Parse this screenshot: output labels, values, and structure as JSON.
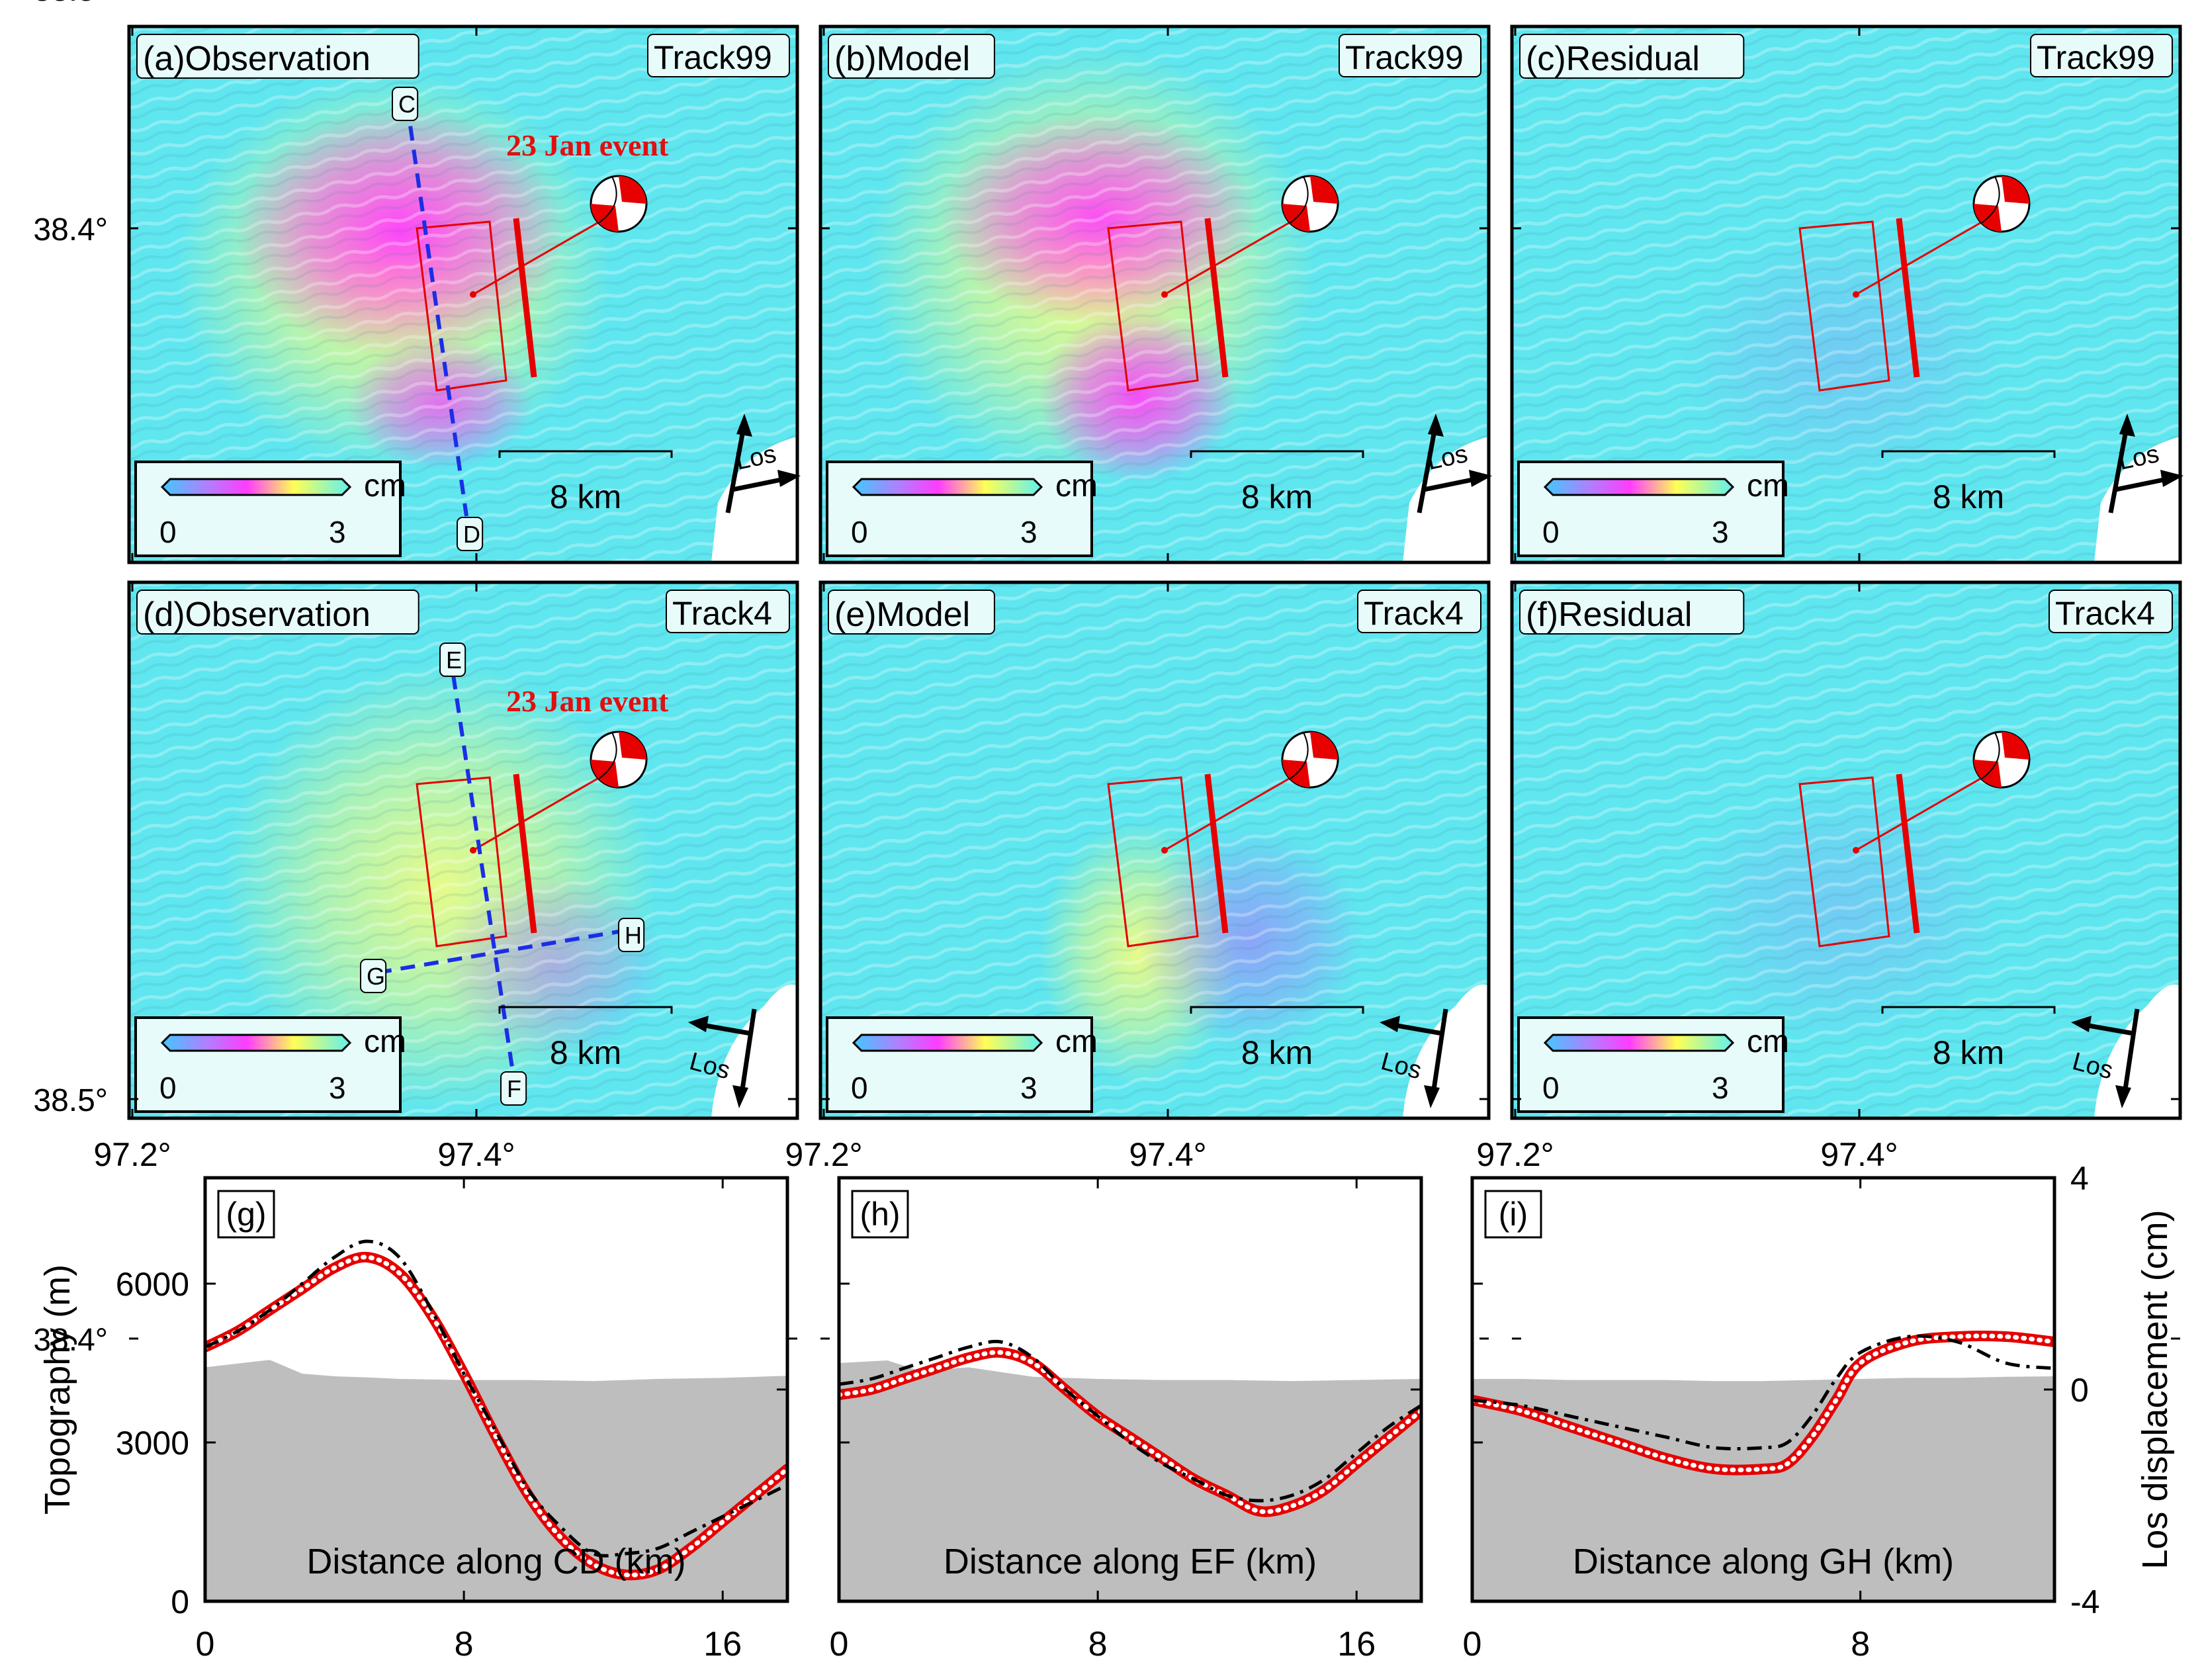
{
  "colors": {
    "insar_background": "#5fe6ef",
    "positive_lobe": "#ff3cff",
    "yellow_lobe": "#ffff78",
    "fault": "#e60000",
    "profile_line": "#1a2ee6",
    "terrain": "#bebebe",
    "observation_profile": "#000000",
    "model_profile": "#e60000"
  },
  "map_axes": {
    "lat_ticks": [
      "38.5°",
      "38.4°"
    ],
    "lat_values": [
      38.5,
      38.4
    ],
    "lon_ticks": [
      "97.2°",
      "97.4°"
    ],
    "lon_values": [
      97.2,
      97.4
    ]
  },
  "colorbar": {
    "unit": "cm",
    "min": "0",
    "max": "3"
  },
  "scale_bar": "8 km",
  "los_label": "Los",
  "event_label": "23 Jan event",
  "panels": [
    {
      "label": "(a)Observation",
      "track": "Track99",
      "pattern": "obs99",
      "event": true,
      "points": [
        "C",
        "D"
      ]
    },
    {
      "label": "(b)Model",
      "track": "Track99",
      "pattern": "mod99",
      "event": false,
      "points": []
    },
    {
      "label": "(c)Residual",
      "track": "Track99",
      "pattern": "res",
      "event": false,
      "points": []
    },
    {
      "label": "(d)Observation",
      "track": "Track4",
      "pattern": "obs4",
      "event": true,
      "points": [
        "E",
        "F",
        "G",
        "H"
      ]
    },
    {
      "label": "(e)Model",
      "track": "Track4",
      "pattern": "mod4",
      "event": false,
      "points": []
    },
    {
      "label": "(f)Residual",
      "track": "Track4",
      "pattern": "res",
      "event": false,
      "points": []
    }
  ],
  "profiles_axes": {
    "ylabel_left": "Topography (m)",
    "ylabel_right": "Los displacement (cm)",
    "left_ticks": [
      "0",
      "3000",
      "6000"
    ],
    "right_ticks": [
      "-4",
      "0",
      "4"
    ],
    "topo_range_m": [
      0,
      8000
    ],
    "los_range_cm": [
      -4,
      4
    ]
  },
  "chart_data": [
    {
      "type": "line",
      "label": "(g)",
      "xlabel": "Distance along CD (km)",
      "x_ticks": [
        "0",
        "8",
        "16"
      ],
      "xlim": [
        0,
        18
      ],
      "topography_m": {
        "x": [
          0,
          2,
          3,
          4,
          5,
          6,
          8,
          10,
          12,
          14,
          16,
          18
        ],
        "y": [
          4420,
          4560,
          4300,
          4250,
          4230,
          4200,
          4180,
          4180,
          4160,
          4200,
          4220,
          4260
        ]
      },
      "series": [
        {
          "name": "observation",
          "x": [
            0,
            1,
            2,
            3,
            4,
            5,
            6,
            7,
            8,
            9,
            10,
            11,
            12,
            13,
            14,
            15,
            16,
            17,
            18
          ],
          "y": [
            0.8,
            1.1,
            1.5,
            2.0,
            2.5,
            2.8,
            2.5,
            1.5,
            0.3,
            -0.8,
            -1.9,
            -2.6,
            -3.1,
            -3.1,
            -3.0,
            -2.7,
            -2.4,
            -2.1,
            -1.8
          ]
        },
        {
          "name": "model",
          "x": [
            0,
            1,
            2,
            3,
            4,
            5,
            6,
            7,
            8,
            9,
            10,
            11,
            12,
            13,
            14,
            15,
            16,
            17,
            18
          ],
          "y": [
            0.8,
            1.1,
            1.5,
            1.9,
            2.3,
            2.5,
            2.2,
            1.4,
            0.3,
            -0.9,
            -2.0,
            -2.8,
            -3.3,
            -3.5,
            -3.4,
            -3.0,
            -2.5,
            -2.0,
            -1.5
          ]
        }
      ]
    },
    {
      "type": "line",
      "label": "(h)",
      "xlabel": "Distance along EF (km)",
      "x_ticks": [
        "0",
        "8",
        "16"
      ],
      "xlim": [
        0,
        18
      ],
      "topography_m": {
        "x": [
          0,
          1.5,
          2.5,
          4,
          6,
          8,
          10,
          12,
          14,
          16,
          18
        ],
        "y": [
          4500,
          4550,
          4350,
          4420,
          4240,
          4200,
          4180,
          4180,
          4160,
          4180,
          4200
        ]
      },
      "series": [
        {
          "name": "observation",
          "x": [
            0,
            1,
            2,
            3,
            4,
            5,
            6,
            7,
            8,
            9,
            10,
            11,
            12,
            13,
            14,
            15,
            16,
            17,
            18
          ],
          "y": [
            0.1,
            0.2,
            0.4,
            0.6,
            0.8,
            0.9,
            0.6,
            0.0,
            -0.5,
            -1.0,
            -1.4,
            -1.7,
            -2.0,
            -2.1,
            -2.0,
            -1.7,
            -1.2,
            -0.7,
            -0.3
          ]
        },
        {
          "name": "model",
          "x": [
            0,
            1,
            2,
            3,
            4,
            5,
            6,
            7,
            8,
            9,
            10,
            11,
            12,
            13,
            14,
            15,
            16,
            17,
            18
          ],
          "y": [
            -0.1,
            0.0,
            0.2,
            0.4,
            0.6,
            0.7,
            0.5,
            0.0,
            -0.5,
            -0.9,
            -1.3,
            -1.7,
            -2.0,
            -2.3,
            -2.2,
            -1.9,
            -1.4,
            -0.9,
            -0.4
          ]
        }
      ]
    },
    {
      "type": "line",
      "label": "(i)",
      "xlabel": "Distance along GH (km)",
      "x_ticks": [
        "0",
        "8"
      ],
      "xlim": [
        0,
        12
      ],
      "topography_m": {
        "x": [
          0,
          1,
          2,
          3,
          4,
          5,
          6,
          7,
          8,
          9,
          10,
          11,
          12
        ],
        "y": [
          4200,
          4200,
          4180,
          4180,
          4180,
          4160,
          4160,
          4180,
          4200,
          4220,
          4220,
          4240,
          4250
        ]
      },
      "series": [
        {
          "name": "observation",
          "x": [
            0,
            1,
            2,
            3,
            4,
            5,
            6,
            6.5,
            7,
            7.5,
            8,
            9,
            10,
            11,
            12
          ],
          "y": [
            -0.2,
            -0.3,
            -0.5,
            -0.7,
            -0.9,
            -1.1,
            -1.1,
            -1.0,
            -0.5,
            0.2,
            0.7,
            1.0,
            0.9,
            0.5,
            0.4
          ]
        },
        {
          "name": "model",
          "x": [
            0,
            1,
            2,
            3,
            4,
            5,
            6,
            6.5,
            7,
            7.5,
            8,
            9,
            10,
            11,
            12
          ],
          "y": [
            -0.2,
            -0.4,
            -0.7,
            -1.0,
            -1.3,
            -1.5,
            -1.5,
            -1.4,
            -0.9,
            -0.2,
            0.5,
            0.9,
            1.0,
            1.0,
            0.9
          ]
        }
      ]
    }
  ]
}
